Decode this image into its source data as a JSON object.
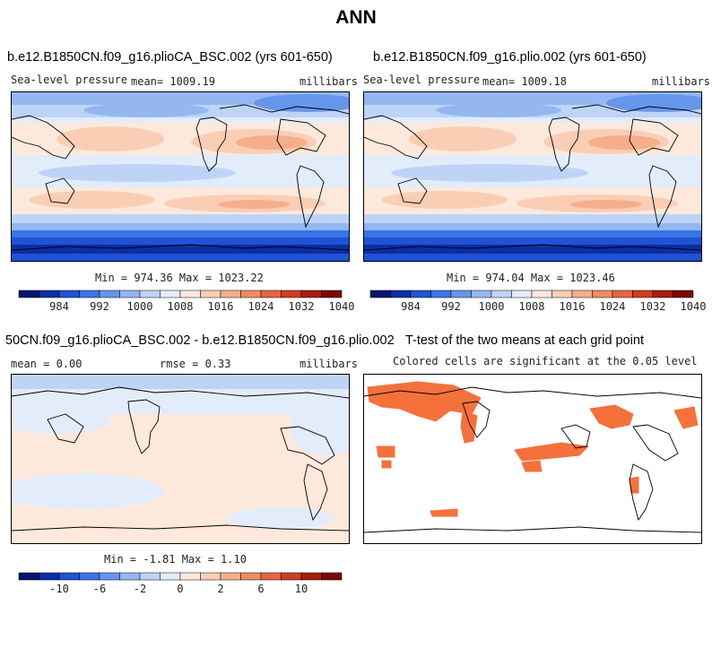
{
  "title": "ANN",
  "panels": [
    {
      "case": "b.e12.B1850CN.f09_g16.plioCA_BSC.002 (yrs 601-650)",
      "variable": "Sea-level pressure",
      "mean": "mean= 1009.19",
      "units": "millibars",
      "minmax": "Min = 974.36 Max = 1023.22"
    },
    {
      "case": "b.e12.B1850CN.f09_g16.plio.002 (yrs 601-650)",
      "variable": "Sea-level pressure",
      "mean": "mean= 1009.18",
      "units": "millibars",
      "minmax": "Min = 974.04 Max = 1023.46"
    },
    {
      "case": "50CN.f09_g16.plioCA_BSC.002 - b.e12.B1850CN.f09_g16.plio.002",
      "mean": "mean =   0.00",
      "rmse": "rmse =   0.33",
      "units": "millibars",
      "minmax": "Min =  -1.81 Max =   1.10"
    },
    {
      "case": "T-test of the two means at each grid point",
      "subtitle": "Colored cells are significant at the 0.05 level",
      "significance_color": "#f4713c"
    }
  ],
  "chart_data": [
    {
      "type": "heatmap",
      "title": "b.e12.B1850CN.f09_g16.plioCA_BSC.002 (yrs 601-650)",
      "variable": "Sea-level pressure",
      "units": "millibars",
      "mean": 1009.19,
      "min": 974.36,
      "max": 1023.22,
      "colorbar_ticks": [
        "984",
        "992",
        "1000",
        "1008",
        "1016",
        "1024",
        "1032",
        "1040"
      ]
    },
    {
      "type": "heatmap",
      "title": "b.e12.B1850CN.f09_g16.plio.002 (yrs 601-650)",
      "variable": "Sea-level pressure",
      "units": "millibars",
      "mean": 1009.18,
      "min": 974.04,
      "max": 1023.46,
      "colorbar_ticks": [
        "984",
        "992",
        "1000",
        "1008",
        "1016",
        "1024",
        "1032",
        "1040"
      ]
    },
    {
      "type": "heatmap",
      "title": "50CN.f09_g16.plioCA_BSC.002 - b.e12.B1850CN.f09_g16.plio.002",
      "units": "millibars",
      "mean": 0.0,
      "rmse": 0.33,
      "min": -1.81,
      "max": 1.1,
      "colorbar_ticks": [
        "-10",
        "-6",
        "-2",
        "0",
        "2",
        "6",
        "10"
      ]
    },
    {
      "type": "heatmap",
      "title": "T-test of the two means at each grid point",
      "subtitle": "Colored cells are significant at the 0.05 level",
      "significance_level": 0.05
    }
  ],
  "colorbar": {
    "colors": [
      "#08146b",
      "#0b2fa3",
      "#1f52d6",
      "#3a74e6",
      "#6696ec",
      "#94b7f2",
      "#bed4f7",
      "#e2ecfb",
      "#fde9dc",
      "#f9ceb5",
      "#f5ae8c",
      "#f08a63",
      "#e66440",
      "#cf3d22",
      "#a81d0f",
      "#7a0906"
    ],
    "diff_colors": [
      "#08146b",
      "#0b2fa3",
      "#1f52d6",
      "#3a74e6",
      "#6696ec",
      "#94b7f2",
      "#bed4f7",
      "#e2ecfb",
      "#fde9dc",
      "#f9ceb5",
      "#f5ae8c",
      "#f08a63",
      "#e66440",
      "#cf3d22",
      "#a81d0f",
      "#7a0906"
    ]
  }
}
